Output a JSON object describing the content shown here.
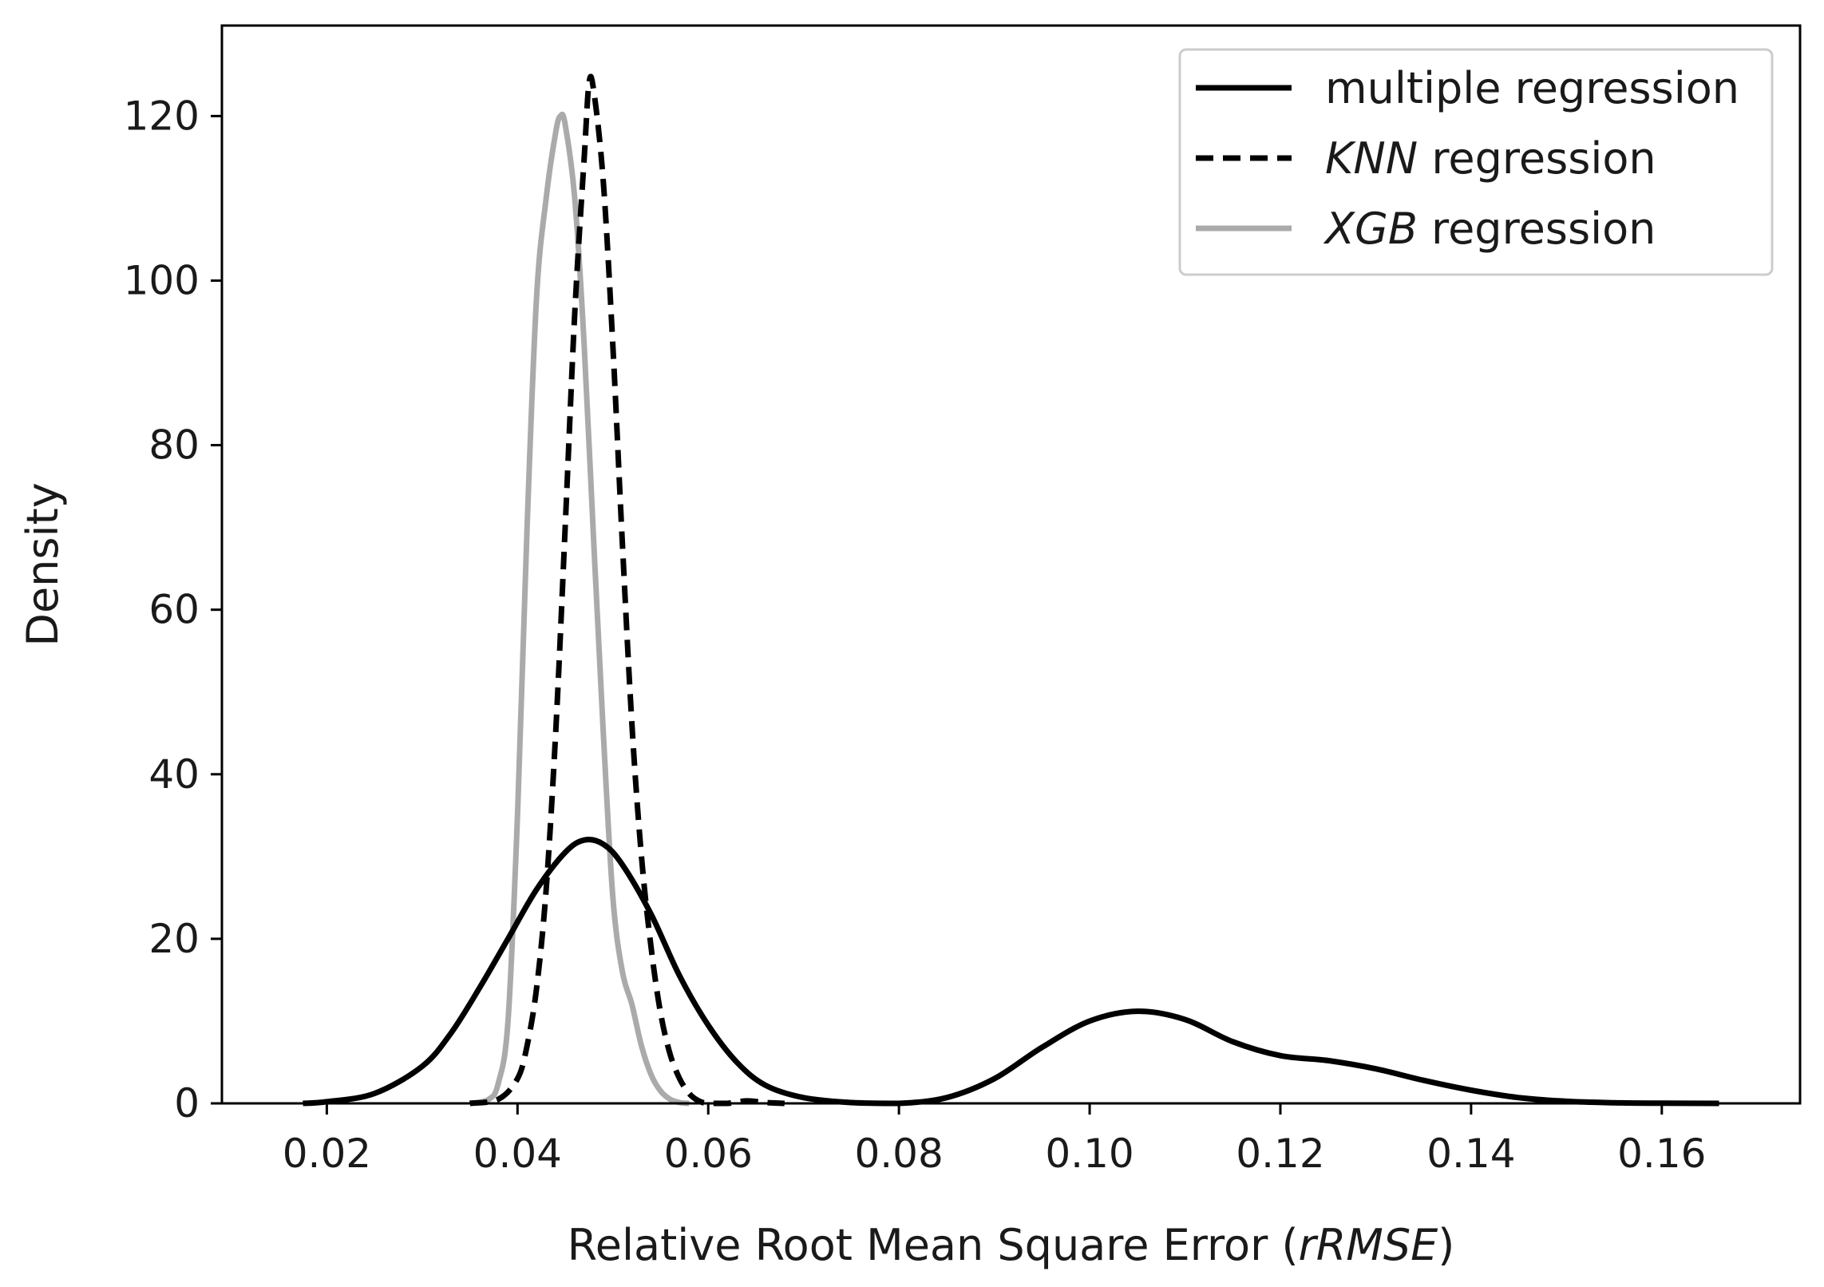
{
  "chart_data": {
    "type": "line",
    "title": "",
    "xlabel_parts": [
      "Relative Root Mean Square Error (",
      "rRMSE",
      ")"
    ],
    "ylabel": "Density",
    "xlim": [
      0.009,
      0.1745
    ],
    "ylim": [
      0,
      131
    ],
    "xticks": [
      0.02,
      0.04,
      0.06,
      0.08,
      0.1,
      0.12,
      0.14,
      0.16
    ],
    "xtick_labels": [
      "0.02",
      "0.04",
      "0.06",
      "0.08",
      "0.10",
      "0.12",
      "0.14",
      "0.16"
    ],
    "yticks": [
      0,
      20,
      40,
      60,
      80,
      100,
      120
    ],
    "ytick_labels": [
      "0",
      "20",
      "40",
      "60",
      "80",
      "100",
      "120"
    ],
    "grid": false,
    "legend_position": "top-right",
    "series": [
      {
        "name": "multiple regression",
        "legend_parts": [
          "",
          "multiple regression"
        ],
        "style": "solid",
        "color": "#000000",
        "points": [
          [
            0.0175,
            0.0
          ],
          [
            0.02,
            0.2
          ],
          [
            0.025,
            1.2
          ],
          [
            0.03,
            4.5
          ],
          [
            0.033,
            8.5
          ],
          [
            0.036,
            14.0
          ],
          [
            0.039,
            20.0
          ],
          [
            0.042,
            26.0
          ],
          [
            0.045,
            30.5
          ],
          [
            0.047,
            32.0
          ],
          [
            0.049,
            31.5
          ],
          [
            0.051,
            29.0
          ],
          [
            0.054,
            23.0
          ],
          [
            0.057,
            15.5
          ],
          [
            0.06,
            9.5
          ],
          [
            0.063,
            5.0
          ],
          [
            0.066,
            2.2
          ],
          [
            0.07,
            0.7
          ],
          [
            0.075,
            0.1
          ],
          [
            0.08,
            0.0
          ],
          [
            0.085,
            0.7
          ],
          [
            0.09,
            3.0
          ],
          [
            0.095,
            6.8
          ],
          [
            0.1,
            10.0
          ],
          [
            0.105,
            11.2
          ],
          [
            0.11,
            10.2
          ],
          [
            0.115,
            7.5
          ],
          [
            0.12,
            5.8
          ],
          [
            0.125,
            5.2
          ],
          [
            0.13,
            4.2
          ],
          [
            0.135,
            2.8
          ],
          [
            0.14,
            1.6
          ],
          [
            0.145,
            0.7
          ],
          [
            0.15,
            0.25
          ],
          [
            0.155,
            0.08
          ],
          [
            0.16,
            0.02
          ],
          [
            0.166,
            0.0
          ]
        ]
      },
      {
        "name": "KNN regression",
        "legend_parts": [
          "KNN",
          " regression"
        ],
        "style": "dashed",
        "color": "#000000",
        "points": [
          [
            0.035,
            0.0
          ],
          [
            0.038,
            0.5
          ],
          [
            0.04,
            3.0
          ],
          [
            0.041,
            7.0
          ],
          [
            0.042,
            14.0
          ],
          [
            0.043,
            26.0
          ],
          [
            0.044,
            45.0
          ],
          [
            0.045,
            70.0
          ],
          [
            0.046,
            96.0
          ],
          [
            0.047,
            115.0
          ],
          [
            0.0475,
            124.0
          ],
          [
            0.048,
            123.0
          ],
          [
            0.049,
            112.0
          ],
          [
            0.05,
            92.0
          ],
          [
            0.051,
            68.0
          ],
          [
            0.052,
            46.0
          ],
          [
            0.053,
            30.0
          ],
          [
            0.054,
            19.0
          ],
          [
            0.055,
            11.0
          ],
          [
            0.056,
            6.0
          ],
          [
            0.057,
            3.0
          ],
          [
            0.058,
            1.2
          ],
          [
            0.059,
            0.3
          ],
          [
            0.06,
            0.0
          ],
          [
            0.062,
            0.0
          ],
          [
            0.064,
            0.3
          ],
          [
            0.066,
            0.1
          ],
          [
            0.068,
            0.0
          ]
        ]
      },
      {
        "name": "XGB regression",
        "legend_parts": [
          "XGB",
          " regression"
        ],
        "style": "solid",
        "color": "#aaaaaa",
        "points": [
          [
            0.035,
            0.0
          ],
          [
            0.037,
            0.5
          ],
          [
            0.038,
            2.5
          ],
          [
            0.039,
            10.0
          ],
          [
            0.04,
            35.0
          ],
          [
            0.041,
            70.0
          ],
          [
            0.042,
            98.0
          ],
          [
            0.043,
            110.0
          ],
          [
            0.044,
            118.0
          ],
          [
            0.0445,
            120.0
          ],
          [
            0.045,
            119.0
          ],
          [
            0.046,
            110.0
          ],
          [
            0.047,
            92.0
          ],
          [
            0.048,
            68.0
          ],
          [
            0.049,
            45.0
          ],
          [
            0.05,
            25.0
          ],
          [
            0.051,
            16.0
          ],
          [
            0.052,
            12.0
          ],
          [
            0.053,
            7.0
          ],
          [
            0.054,
            3.5
          ],
          [
            0.055,
            1.5
          ],
          [
            0.056,
            0.5
          ],
          [
            0.057,
            0.1
          ],
          [
            0.058,
            0.0
          ]
        ]
      }
    ]
  }
}
